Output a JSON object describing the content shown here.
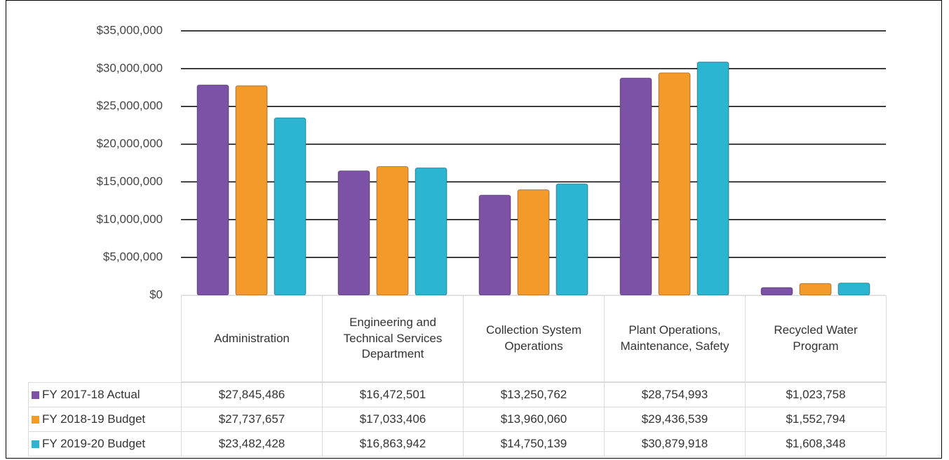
{
  "chart_data": {
    "type": "bar",
    "categories": [
      "Administration",
      "Engineering and Technical Services Department",
      "Collection System Operations",
      "Plant Operations, Maintenance, Safety",
      "Recycled Water Program"
    ],
    "series": [
      {
        "name": "FY 2017-18 Actual",
        "color": "#7b52a6",
        "values": [
          27845486,
          16472501,
          13250762,
          28754993,
          1023758
        ],
        "value_labels": [
          "$27,845,486",
          "$16,472,501",
          "$13,250,762",
          "$28,754,993",
          "$1,023,758"
        ]
      },
      {
        "name": "FY 2018-19 Budget",
        "color": "#f39a2b",
        "values": [
          27737657,
          17033406,
          13960060,
          29436539,
          1552794
        ],
        "value_labels": [
          "$27,737,657",
          "$17,033,406",
          "$13,960,060",
          "$29,436,539",
          "$1,552,794"
        ]
      },
      {
        "name": "FY 2019-20 Budget",
        "color": "#2cb5d0",
        "values": [
          23482428,
          16863942,
          14750139,
          30879918,
          1608348
        ],
        "value_labels": [
          "$23,482,428",
          "$16,863,942",
          "$14,750,139",
          "$30,879,918",
          "$1,608,348"
        ]
      }
    ],
    "ylim": [
      0,
      35000000
    ],
    "yticks": [
      {
        "value": 0,
        "label": "$0"
      },
      {
        "value": 5000000,
        "label": "$5,000,000"
      },
      {
        "value": 10000000,
        "label": "$10,000,000"
      },
      {
        "value": 15000000,
        "label": "$15,000,000"
      },
      {
        "value": 20000000,
        "label": "$20,000,000"
      },
      {
        "value": 25000000,
        "label": "$25,000,000"
      },
      {
        "value": 30000000,
        "label": "$30,000,000"
      },
      {
        "value": 35000000,
        "label": "$35,000,000"
      }
    ],
    "grid": true
  }
}
